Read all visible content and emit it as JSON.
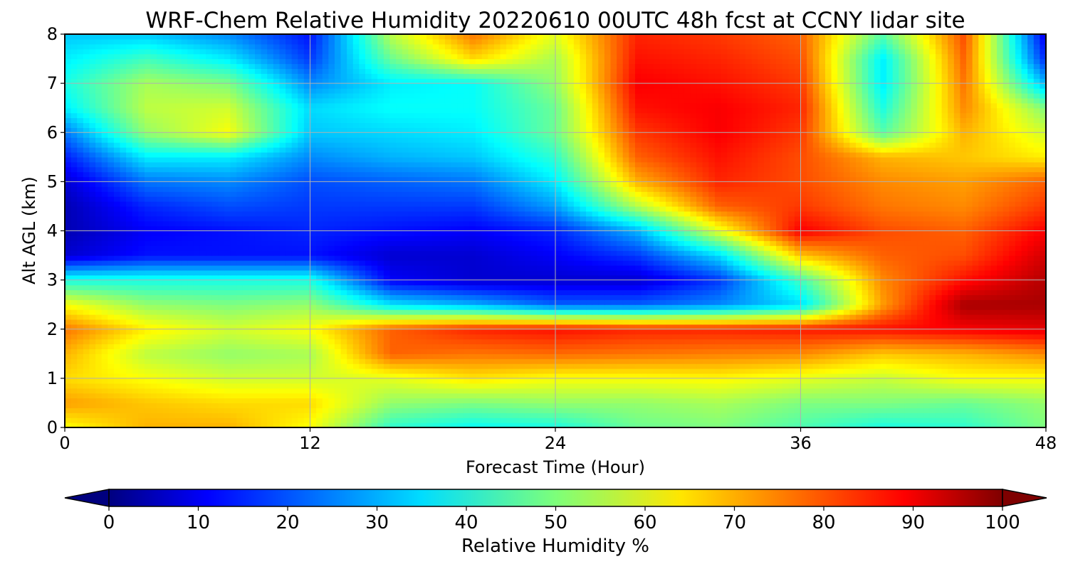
{
  "chart_data": {
    "type": "heatmap",
    "title": "WRF-Chem Relative Humidity 20220610 00UTC 48h fcst at CCNY lidar site",
    "xlabel": "Forecast Time (Hour)",
    "ylabel": "Alt AGL (km)",
    "xlim": [
      0,
      48
    ],
    "ylim": [
      0,
      8
    ],
    "x_ticks": [
      "0",
      "12",
      "24",
      "36",
      "48"
    ],
    "y_ticks": [
      "0",
      "1",
      "2",
      "3",
      "4",
      "5",
      "6",
      "7",
      "8"
    ],
    "grid": true,
    "colormap": "jet",
    "colorbar": {
      "label": "Relative Humidity %",
      "orientation": "horizontal",
      "placement": "bottom",
      "extend": "both",
      "range": [
        0,
        100
      ],
      "ticks": [
        "0",
        "10",
        "20",
        "30",
        "40",
        "50",
        "60",
        "70",
        "80",
        "90",
        "100"
      ]
    },
    "x": [
      0,
      4,
      8,
      12,
      16,
      20,
      24,
      28,
      32,
      36,
      40,
      44,
      48
    ],
    "y": [
      0,
      0.5,
      1,
      1.5,
      2,
      2.5,
      3,
      3.5,
      4,
      4.5,
      5,
      5.5,
      6,
      6.5,
      7,
      7.5,
      8
    ],
    "z": [
      [
        62,
        70,
        70,
        62,
        42,
        38,
        40,
        48,
        50,
        45,
        40,
        42,
        50
      ],
      [
        72,
        68,
        66,
        66,
        52,
        50,
        52,
        52,
        54,
        50,
        50,
        48,
        52
      ],
      [
        66,
        62,
        58,
        58,
        60,
        65,
        62,
        62,
        63,
        60,
        57,
        62,
        62
      ],
      [
        70,
        56,
        52,
        54,
        78,
        76,
        77,
        76,
        75,
        74,
        68,
        70,
        74
      ],
      [
        76,
        64,
        58,
        62,
        78,
        84,
        86,
        84,
        84,
        85,
        86,
        88,
        90
      ],
      [
        62,
        52,
        50,
        52,
        35,
        30,
        22,
        22,
        26,
        34,
        72,
        96,
        96
      ],
      [
        40,
        40,
        40,
        40,
        12,
        8,
        8,
        8,
        18,
        44,
        74,
        86,
        95
      ],
      [
        8,
        14,
        14,
        14,
        8,
        8,
        12,
        18,
        34,
        68,
        78,
        80,
        92
      ],
      [
        5,
        12,
        14,
        16,
        14,
        12,
        16,
        30,
        60,
        88,
        80,
        78,
        88
      ],
      [
        5,
        16,
        20,
        18,
        18,
        18,
        28,
        55,
        78,
        82,
        76,
        74,
        82
      ],
      [
        8,
        24,
        26,
        20,
        22,
        24,
        36,
        70,
        84,
        80,
        74,
        72,
        78
      ],
      [
        15,
        36,
        36,
        26,
        30,
        32,
        42,
        78,
        86,
        80,
        70,
        68,
        64
      ],
      [
        24,
        52,
        62,
        32,
        34,
        36,
        48,
        82,
        88,
        82,
        46,
        70,
        58
      ],
      [
        36,
        56,
        58,
        34,
        38,
        38,
        48,
        86,
        88,
        84,
        40,
        74,
        50
      ],
      [
        40,
        54,
        50,
        26,
        36,
        38,
        52,
        88,
        86,
        82,
        36,
        76,
        30
      ],
      [
        36,
        44,
        36,
        18,
        48,
        66,
        54,
        86,
        84,
        80,
        36,
        78,
        16
      ],
      [
        32,
        32,
        26,
        14,
        56,
        76,
        60,
        84,
        82,
        78,
        46,
        80,
        10
      ]
    ]
  }
}
